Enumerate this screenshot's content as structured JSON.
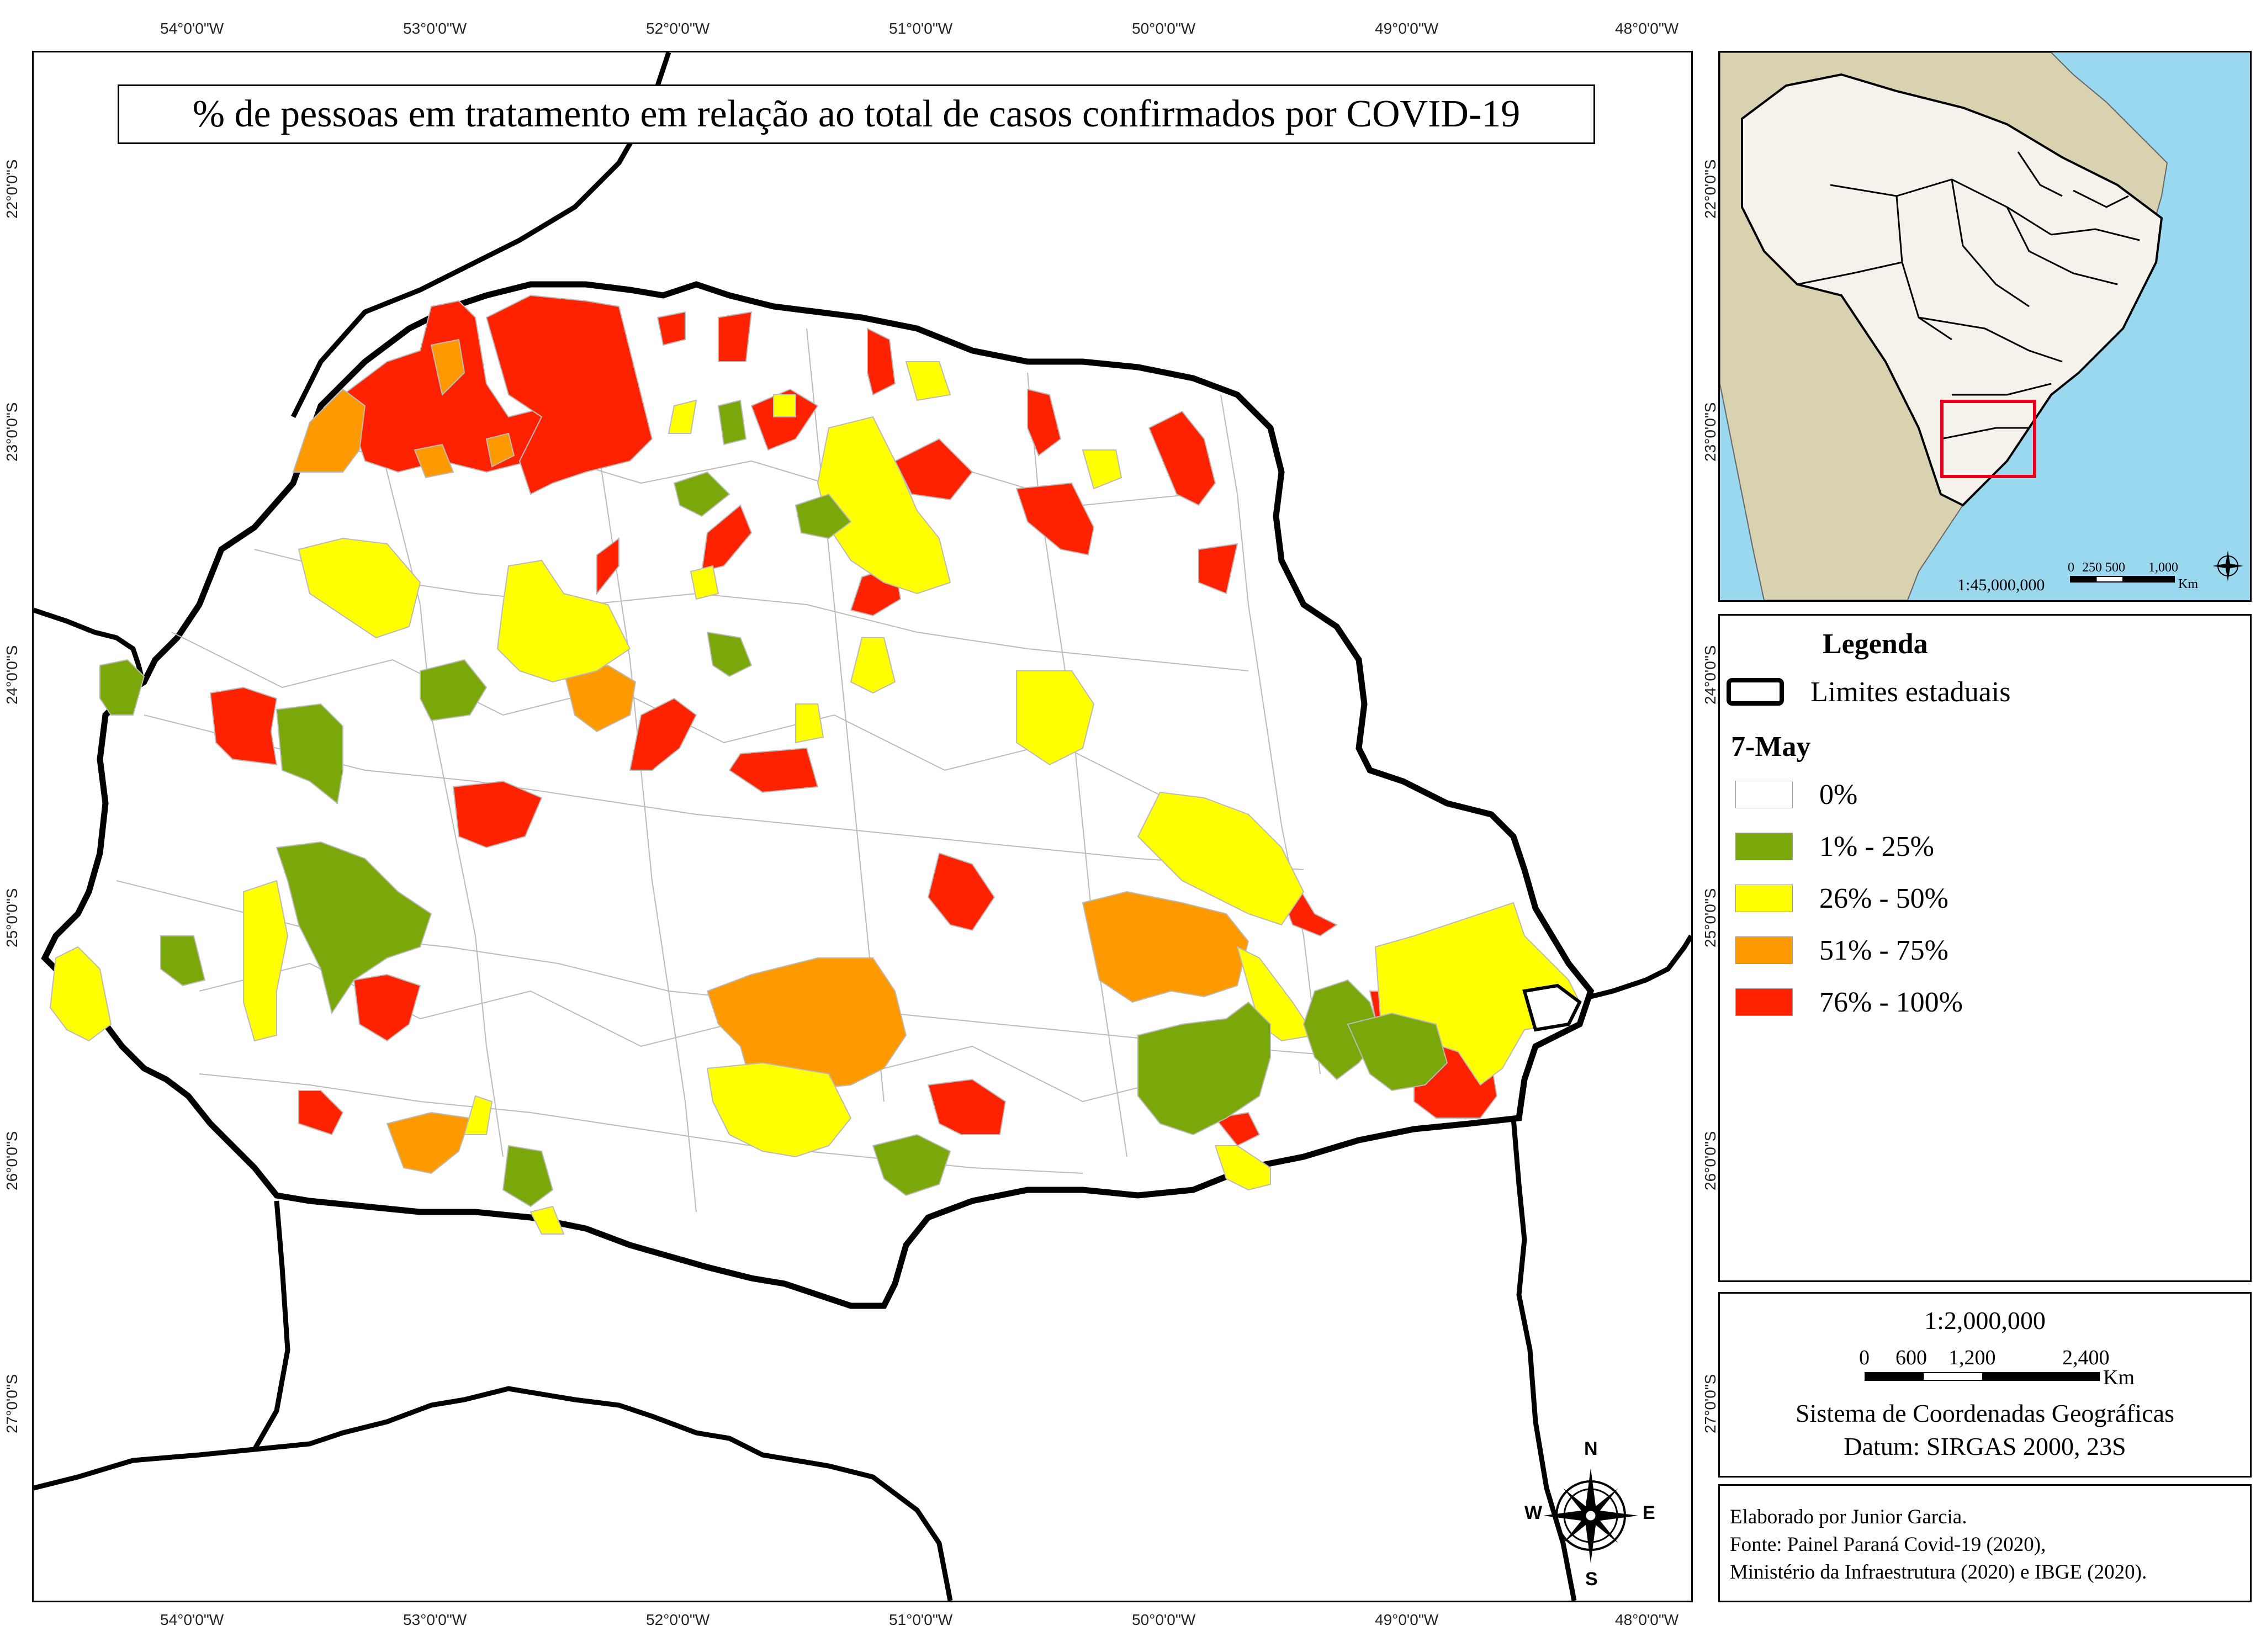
{
  "title": "% de pessoas em tratamento em relação ao total de casos confirmados por COVID-19",
  "top_coords": [
    "54°0'0\"W",
    "53°0'0\"W",
    "52°0'0\"W",
    "51°0'0\"W",
    "50°0'0\"W",
    "49°0'0\"W",
    "48°0'0\"W"
  ],
  "bottom_coords": [
    "54°0'0\"W",
    "53°0'0\"W",
    "52°0'0\"W",
    "51°0'0\"W",
    "50°0'0\"W",
    "49°0'0\"W",
    "48°0'0\"W"
  ],
  "left_coords": [
    "22°0'0\"S",
    "23°0'0\"S",
    "24°0'0\"S",
    "25°0'0\"S",
    "26°0'0\"S",
    "27°0'0\"S"
  ],
  "middle_coords": [
    "22°0'0\"S",
    "23°0'0\"S",
    "24°0'0\"S",
    "25°0'0\"S",
    "26°0'0\"S",
    "27°0'0\"S"
  ],
  "compass": {
    "n": "N",
    "s": "S",
    "e": "E",
    "w": "W"
  },
  "inset": {
    "scale_text": "1:45,000,000",
    "scale_ticks": [
      "0",
      "250",
      "500",
      "1,000"
    ],
    "scale_unit": "Km"
  },
  "legend": {
    "heading": "Legenda",
    "boundary_label": "Limites estaduais",
    "date": "7-May",
    "classes": [
      {
        "label": "0%",
        "color": "#ffffff"
      },
      {
        "label": "1% - 25%",
        "color": "#7aa80a"
      },
      {
        "label": "26% - 50%",
        "color": "#ffff00"
      },
      {
        "label": "51% - 75%",
        "color": "#ff9900"
      },
      {
        "label": "76% - 100%",
        "color": "#ff2200"
      }
    ]
  },
  "scale": {
    "ratio": "1:2,000,000",
    "ticks": [
      "0",
      "600",
      "1,200",
      "2,400"
    ],
    "unit": "Km",
    "crs_line1": "Sistema de Coordenadas Geográficas",
    "crs_line2": "Datum: SIRGAS 2000, 23S"
  },
  "credits": {
    "line1": "Elaborado por Junior Garcia.",
    "line2": "Fonte: Painel Paraná Covid-19 (2020),",
    "line3": "Ministério da Infraestrutura (2020) e IBGE (2020)."
  },
  "colors": {
    "state_border": "#000000",
    "municipal_lines": "#bbbbbb",
    "inset_ocean": "#9ad8ef",
    "inset_land_other": "#d8d2b0",
    "inset_brazil": "#f4f2ea",
    "inset_highlight": "#e8001a"
  }
}
